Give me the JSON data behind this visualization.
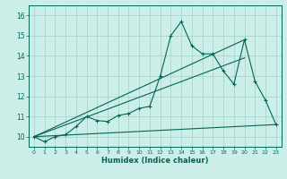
{
  "xlabel": "Humidex (Indice chaleur)",
  "bg_color": "#cceee8",
  "grid_color": "#aad4cc",
  "line_color": "#006655",
  "xlim": [
    -0.5,
    23.5
  ],
  "ylim": [
    9.5,
    16.5
  ],
  "xticks": [
    0,
    1,
    2,
    3,
    4,
    5,
    6,
    7,
    8,
    9,
    10,
    11,
    12,
    13,
    14,
    15,
    16,
    17,
    18,
    19,
    20,
    21,
    22,
    23
  ],
  "yticks": [
    10,
    11,
    12,
    13,
    14,
    15,
    16
  ],
  "main_series_x": [
    0,
    1,
    2,
    3,
    4,
    5,
    6,
    7,
    8,
    9,
    10,
    11,
    12,
    13,
    14,
    15,
    16,
    17,
    18,
    19,
    20,
    21,
    22,
    23
  ],
  "main_series_y": [
    10.0,
    9.75,
    10.0,
    10.1,
    10.5,
    11.0,
    10.8,
    10.75,
    11.05,
    11.15,
    11.4,
    11.5,
    13.0,
    15.0,
    15.7,
    14.5,
    14.1,
    14.1,
    13.25,
    12.6,
    14.8,
    12.75,
    11.8,
    10.6
  ],
  "line1_x": [
    0,
    20
  ],
  "line1_y": [
    10.0,
    14.8
  ],
  "line2_x": [
    0,
    23
  ],
  "line2_y": [
    10.0,
    10.6
  ],
  "line3_x": [
    0,
    20
  ],
  "line3_y": [
    10.0,
    13.9
  ]
}
